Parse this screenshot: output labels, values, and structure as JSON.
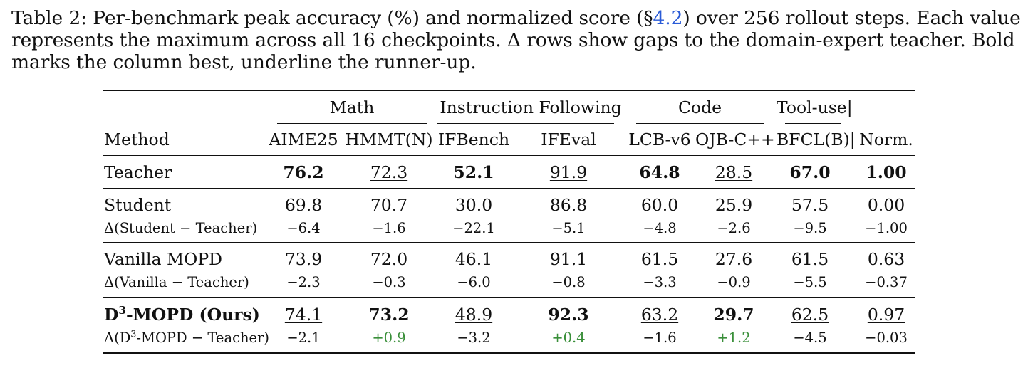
{
  "caption": {
    "line1_pre": "Table 2: Per-benchmark peak accuracy (%) and normalized score (§",
    "line1_ref": "4.2",
    "line1_post": ") over 256 rollout steps. Each value",
    "line2": "represents the maximum across all 16 checkpoints. Δ rows show gaps to the domain-expert teacher. Bold",
    "line3": "marks the column best, underline the runner-up."
  },
  "table": {
    "groups": {
      "math": "Math",
      "instruction": "Instruction Following",
      "code": "Code",
      "tool": "Tool-use|"
    },
    "columns": {
      "method": "Method",
      "aime": "AIME25",
      "hmmt": "HMMT(N)",
      "ifbench": "IFBench",
      "ifeval": "IFEval",
      "lcb": "LCB-v6",
      "ojb": "OJB-C++",
      "bfcl": "BFCL(B)|",
      "norm": "Norm."
    },
    "rows": {
      "teacher": {
        "method": "Teacher",
        "values": [
          "76.2",
          "72.3",
          "52.1",
          "91.9",
          "64.8",
          "28.5",
          "67.0",
          "1.00"
        ]
      },
      "student": {
        "method": "Student",
        "values": [
          "69.8",
          "70.7",
          "30.0",
          "86.8",
          "60.0",
          "25.9",
          "57.5",
          "0.00"
        ]
      },
      "student_delta": {
        "method": "Δ(Student − Teacher)",
        "values": [
          "−6.4",
          "−1.6",
          "−22.1",
          "−5.1",
          "−4.8",
          "−2.6",
          "−9.5",
          "−1.00"
        ]
      },
      "vanilla": {
        "method": "Vanilla MOPD",
        "values": [
          "73.9",
          "72.0",
          "46.1",
          "91.1",
          "61.5",
          "27.6",
          "61.5",
          "0.63"
        ]
      },
      "vanilla_delta": {
        "method": "Δ(Vanilla − Teacher)",
        "values": [
          "−2.3",
          "−0.3",
          "−6.0",
          "−0.8",
          "−3.3",
          "−0.9",
          "−5.5",
          "−0.37"
        ]
      },
      "ours": {
        "method_pre": "D",
        "method_sup": "3",
        "method_post": "-MOPD (Ours)",
        "values": [
          "74.1",
          "73.2",
          "48.9",
          "92.3",
          "63.2",
          "29.7",
          "62.5",
          "0.97"
        ]
      },
      "ours_delta": {
        "method_pre": "Δ(D",
        "method_sup": "3",
        "method_post": "-MOPD − Teacher)",
        "values": [
          "−2.1",
          "+0.9",
          "−3.2",
          "+0.4",
          "−1.6",
          "+1.2",
          "−4.5",
          "−0.03"
        ]
      }
    }
  }
}
